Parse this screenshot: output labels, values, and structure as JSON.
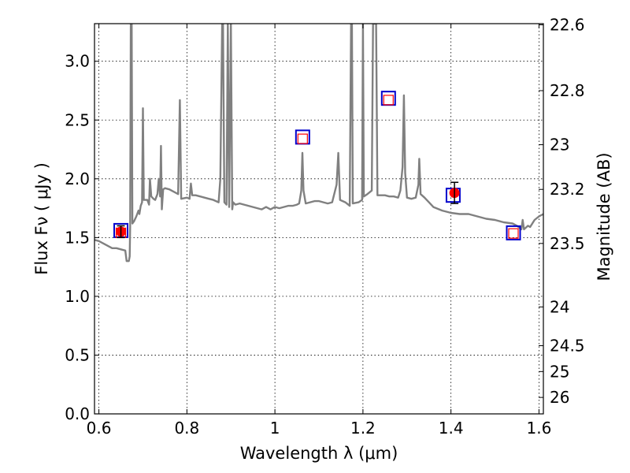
{
  "chart_data": {
    "type": "line",
    "xlabel": "Wavelength  λ (μm)",
    "ylabel": "Flux  Fν  ( μJy )",
    "y2label": "Magnitude (AB)",
    "xlim": [
      0.59,
      1.61
    ],
    "ylim": [
      0.0,
      3.32
    ],
    "grid": true,
    "x_ticks": [
      0.6,
      0.8,
      1.0,
      1.2,
      1.4,
      1.6
    ],
    "x_tick_labels": [
      "0.6",
      "0.8",
      "1",
      "1.2",
      "1.4",
      "1.6"
    ],
    "y_ticks": [
      0.0,
      0.5,
      1.0,
      1.5,
      2.0,
      2.5,
      3.0
    ],
    "y_tick_labels": [
      "0.0",
      "0.5",
      "1.0",
      "1.5",
      "2.0",
      "2.5",
      "3.0"
    ],
    "y2_ticks": [
      {
        "label": "22.6",
        "flux": 3.31
      },
      {
        "label": "22.8",
        "flux": 2.75
      },
      {
        "label": "23",
        "flux": 2.29
      },
      {
        "label": "23.2",
        "flux": 1.91
      },
      {
        "label": "23.5",
        "flux": 1.45
      },
      {
        "label": "24",
        "flux": 0.91
      },
      {
        "label": "24.5",
        "flux": 0.58
      },
      {
        "label": "25",
        "flux": 0.36
      },
      {
        "label": "26",
        "flux": 0.14
      }
    ],
    "series": [
      {
        "color": "#808080",
        "points": [
          [
            0.59,
            1.48
          ],
          [
            0.6,
            1.47
          ],
          [
            0.61,
            1.45
          ],
          [
            0.62,
            1.43
          ],
          [
            0.63,
            1.41
          ],
          [
            0.64,
            1.41
          ],
          [
            0.65,
            1.4
          ],
          [
            0.66,
            1.39
          ],
          [
            0.663,
            1.3
          ],
          [
            0.668,
            1.3
          ],
          [
            0.67,
            1.34
          ],
          [
            0.671,
            1.6
          ],
          [
            0.6725,
            3.32
          ],
          [
            0.6745,
            3.32
          ],
          [
            0.676,
            1.62
          ],
          [
            0.68,
            1.64
          ],
          [
            0.685,
            1.68
          ],
          [
            0.69,
            1.73
          ],
          [
            0.692,
            1.7
          ],
          [
            0.695,
            1.77
          ],
          [
            0.698,
            1.8
          ],
          [
            0.7,
            2.6
          ],
          [
            0.702,
            1.82
          ],
          [
            0.71,
            1.82
          ],
          [
            0.714,
            1.78
          ],
          [
            0.716,
            2.0
          ],
          [
            0.719,
            1.85
          ],
          [
            0.724,
            1.83
          ],
          [
            0.728,
            1.82
          ],
          [
            0.733,
            1.87
          ],
          [
            0.736,
            2.0
          ],
          [
            0.739,
            1.85
          ],
          [
            0.741,
            2.28
          ],
          [
            0.743,
            1.74
          ],
          [
            0.746,
            1.91
          ],
          [
            0.75,
            1.92
          ],
          [
            0.76,
            1.91
          ],
          [
            0.77,
            1.89
          ],
          [
            0.78,
            1.87
          ],
          [
            0.784,
            2.67
          ],
          [
            0.787,
            1.83
          ],
          [
            0.8,
            1.84
          ],
          [
            0.806,
            1.83
          ],
          [
            0.809,
            1.96
          ],
          [
            0.812,
            1.86
          ],
          [
            0.82,
            1.86
          ],
          [
            0.83,
            1.85
          ],
          [
            0.84,
            1.84
          ],
          [
            0.85,
            1.83
          ],
          [
            0.86,
            1.82
          ],
          [
            0.872,
            1.8
          ],
          [
            0.876,
            2.0
          ],
          [
            0.88,
            3.32
          ],
          [
            0.882,
            3.32
          ],
          [
            0.885,
            1.8
          ],
          [
            0.89,
            1.78
          ],
          [
            0.893,
            3.32
          ],
          [
            0.896,
            1.76
          ],
          [
            0.9,
            3.32
          ],
          [
            0.903,
            1.74
          ],
          [
            0.905,
            1.8
          ],
          [
            0.91,
            1.78
          ],
          [
            0.92,
            1.79
          ],
          [
            0.93,
            1.78
          ],
          [
            0.94,
            1.77
          ],
          [
            0.95,
            1.76
          ],
          [
            0.96,
            1.75
          ],
          [
            0.97,
            1.74
          ],
          [
            0.98,
            1.76
          ],
          [
            0.99,
            1.74
          ],
          [
            1.0,
            1.76
          ],
          [
            1.01,
            1.75
          ],
          [
            1.02,
            1.76
          ],
          [
            1.03,
            1.77
          ],
          [
            1.04,
            1.77
          ],
          [
            1.05,
            1.78
          ],
          [
            1.055,
            1.79
          ],
          [
            1.06,
            1.9
          ],
          [
            1.0625,
            2.22
          ],
          [
            1.065,
            1.9
          ],
          [
            1.07,
            1.79
          ],
          [
            1.08,
            1.8
          ],
          [
            1.09,
            1.81
          ],
          [
            1.1,
            1.81
          ],
          [
            1.11,
            1.8
          ],
          [
            1.12,
            1.79
          ],
          [
            1.13,
            1.8
          ],
          [
            1.14,
            1.95
          ],
          [
            1.144,
            2.22
          ],
          [
            1.148,
            1.82
          ],
          [
            1.16,
            1.8
          ],
          [
            1.17,
            1.77
          ],
          [
            1.173,
            3.32
          ],
          [
            1.175,
            3.32
          ],
          [
            1.177,
            1.79
          ],
          [
            1.19,
            1.8
          ],
          [
            1.198,
            1.82
          ],
          [
            1.2,
            3.32
          ],
          [
            1.202,
            1.85
          ],
          [
            1.21,
            1.87
          ],
          [
            1.22,
            1.9
          ],
          [
            1.223,
            3.32
          ],
          [
            1.23,
            3.32
          ],
          [
            1.233,
            1.86
          ],
          [
            1.24,
            1.86
          ],
          [
            1.25,
            1.86
          ],
          [
            1.26,
            1.85
          ],
          [
            1.27,
            1.85
          ],
          [
            1.28,
            1.84
          ],
          [
            1.285,
            1.9
          ],
          [
            1.29,
            2.1
          ],
          [
            1.293,
            2.71
          ],
          [
            1.296,
            2.05
          ],
          [
            1.3,
            1.84
          ],
          [
            1.31,
            1.83
          ],
          [
            1.32,
            1.84
          ],
          [
            1.326,
            1.95
          ],
          [
            1.328,
            2.17
          ],
          [
            1.331,
            1.87
          ],
          [
            1.34,
            1.84
          ],
          [
            1.35,
            1.8
          ],
          [
            1.36,
            1.76
          ],
          [
            1.38,
            1.73
          ],
          [
            1.4,
            1.71
          ],
          [
            1.42,
            1.7
          ],
          [
            1.44,
            1.7
          ],
          [
            1.46,
            1.68
          ],
          [
            1.48,
            1.66
          ],
          [
            1.5,
            1.65
          ],
          [
            1.52,
            1.63
          ],
          [
            1.54,
            1.62
          ],
          [
            1.55,
            1.6
          ],
          [
            1.56,
            1.57
          ],
          [
            1.563,
            1.65
          ],
          [
            1.566,
            1.57
          ],
          [
            1.575,
            1.6
          ],
          [
            1.58,
            1.59
          ],
          [
            1.59,
            1.65
          ],
          [
            1.6,
            1.68
          ],
          [
            1.61,
            1.7
          ]
        ]
      }
    ],
    "observed": {
      "color": "#ff0000",
      "points": [
        {
          "x": 0.65,
          "y": 1.55,
          "yerr": 0.05
        },
        {
          "x": 1.408,
          "y": 1.88,
          "yerr": 0.09
        }
      ]
    },
    "model_squares": {
      "color": "#0000cc",
      "points": [
        {
          "x": 0.65,
          "y": 1.56
        },
        {
          "x": 1.063,
          "y": 2.355
        },
        {
          "x": 1.258,
          "y": 2.685
        },
        {
          "x": 1.405,
          "y": 1.86
        },
        {
          "x": 1.542,
          "y": 1.54
        }
      ]
    },
    "inner_squares": {
      "color": "#ff0000",
      "points": [
        {
          "x": 0.65,
          "y": 1.54
        },
        {
          "x": 1.063,
          "y": 2.34
        },
        {
          "x": 1.258,
          "y": 2.67
        },
        {
          "x": 1.542,
          "y": 1.535
        }
      ]
    }
  }
}
